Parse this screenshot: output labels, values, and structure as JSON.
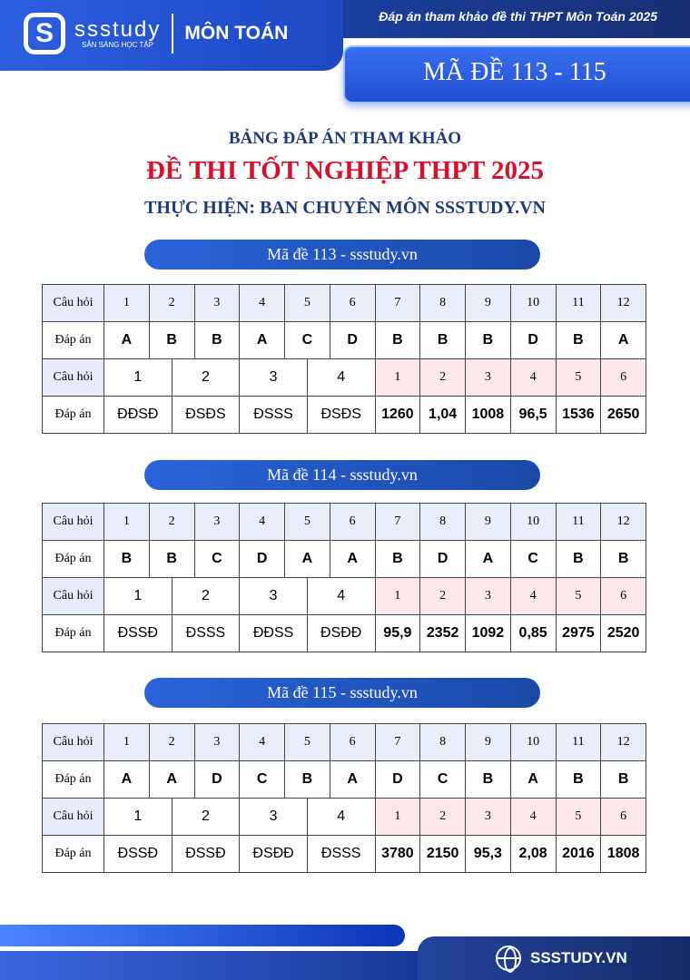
{
  "header": {
    "logo_text": "ssstudy",
    "logo_tagline": "SẴN SÀNG HỌC TẬP",
    "subject": "MÔN TOÁN",
    "top_title": "Đáp án tham khảo đề thi THPT Môn Toán 2025",
    "code_range": "MÃ ĐỀ 113 - 115",
    "colors": {
      "primary": "#1d48c2",
      "title_red": "#d4122c",
      "navy": "#1f3b74"
    }
  },
  "titles": {
    "line1": "BẢNG ĐÁP ÁN THAM KHẢO",
    "line2": "ĐỀ THI TỐT NGHIỆP THPT 2025",
    "line3": "THỰC HIỆN: BAN CHUYÊN MÔN SSSTUDY.VN"
  },
  "labels": {
    "question": "Câu hỏi",
    "answer": "Đáp án"
  },
  "exams": [
    {
      "title": "Mã đề 113 - ssstudy.vn",
      "part1_questions": [
        "1",
        "2",
        "3",
        "4",
        "5",
        "6",
        "7",
        "8",
        "9",
        "10",
        "11",
        "12"
      ],
      "part1_answers": [
        "A",
        "B",
        "B",
        "A",
        "C",
        "D",
        "B",
        "B",
        "B",
        "D",
        "B",
        "A"
      ],
      "part2_questions": [
        "1",
        "2",
        "3",
        "4"
      ],
      "part2_answers": [
        "ĐĐSĐ",
        "ĐSĐS",
        "ĐSSS",
        "ĐSĐS"
      ],
      "part3_questions": [
        "1",
        "2",
        "3",
        "4",
        "5",
        "6"
      ],
      "part3_answers": [
        "1260",
        "1,04",
        "1008",
        "96,5",
        "1536",
        "2650"
      ]
    },
    {
      "title": "Mã đề 114 - ssstudy.vn",
      "part1_questions": [
        "1",
        "2",
        "3",
        "4",
        "5",
        "6",
        "7",
        "8",
        "9",
        "10",
        "11",
        "12"
      ],
      "part1_answers": [
        "B",
        "B",
        "C",
        "D",
        "A",
        "A",
        "B",
        "D",
        "A",
        "C",
        "B",
        "B"
      ],
      "part2_questions": [
        "1",
        "2",
        "3",
        "4"
      ],
      "part2_answers": [
        "ĐSSĐ",
        "ĐSSS",
        "ĐĐSS",
        "ĐSĐĐ"
      ],
      "part3_questions": [
        "1",
        "2",
        "3",
        "4",
        "5",
        "6"
      ],
      "part3_answers": [
        "95,9",
        "2352",
        "1092",
        "0,85",
        "2975",
        "2520"
      ]
    },
    {
      "title": "Mã đề 115 - ssstudy.vn",
      "part1_questions": [
        "1",
        "2",
        "3",
        "4",
        "5",
        "6",
        "7",
        "8",
        "9",
        "10",
        "11",
        "12"
      ],
      "part1_answers": [
        "A",
        "A",
        "D",
        "C",
        "B",
        "A",
        "D",
        "C",
        "B",
        "A",
        "B",
        "B"
      ],
      "part2_questions": [
        "1",
        "2",
        "3",
        "4"
      ],
      "part2_answers": [
        "ĐSSĐ",
        "ĐSSĐ",
        "ĐSĐĐ",
        "ĐSSS"
      ],
      "part3_questions": [
        "1",
        "2",
        "3",
        "4",
        "5",
        "6"
      ],
      "part3_answers": [
        "3780",
        "2150",
        "95,3",
        "2,08",
        "2016",
        "1808"
      ]
    }
  ],
  "footer": {
    "site": "SSSTUDY.VN"
  }
}
